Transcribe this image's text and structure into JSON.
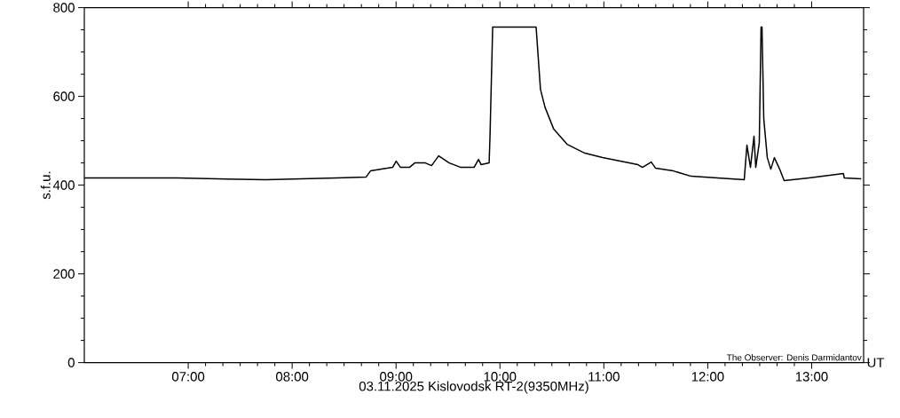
{
  "chart_data": {
    "type": "line",
    "xlabel": "03.11.2025 Kislovodsk RT-2(9350MHz)",
    "ylabel": "s.f.u.",
    "annotations": [
      "UT",
      "The Observer: Denis Darmidantov"
    ],
    "xlim": [
      6.0,
      13.5
    ],
    "ylim": [
      0,
      800
    ],
    "xticks": [
      {
        "value": 7,
        "label": "07:00"
      },
      {
        "value": 8,
        "label": "08:00"
      },
      {
        "value": 9,
        "label": "09:00"
      },
      {
        "value": 10,
        "label": "10:00"
      },
      {
        "value": 11,
        "label": "11:00"
      },
      {
        "value": 12,
        "label": "12:00"
      },
      {
        "value": 13,
        "label": "13:00"
      }
    ],
    "yticks": [
      0,
      200,
      400,
      600,
      800
    ],
    "grid": false,
    "marker": "none",
    "line_style": "solid",
    "series": [
      {
        "color": "#000000",
        "x": [
          6.0,
          6.895,
          7.748,
          8.43,
          8.711,
          8.754,
          8.967,
          9.001,
          9.043,
          9.129,
          9.18,
          9.282,
          9.342,
          9.41,
          9.512,
          9.623,
          9.751,
          9.794,
          9.819,
          9.896,
          9.905,
          9.93,
          10.348,
          10.39,
          10.433,
          10.518,
          10.646,
          10.817,
          10.987,
          11.328,
          11.371,
          11.456,
          11.499,
          11.669,
          11.84,
          12.351,
          12.377,
          12.411,
          12.445,
          12.462,
          12.496,
          12.513,
          12.522,
          12.539,
          12.573,
          12.607,
          12.641,
          12.692,
          12.735,
          12.974,
          13.306,
          13.314,
          13.476
        ],
        "values": [
          416,
          416,
          412,
          416,
          418,
          432,
          440,
          454,
          440,
          440,
          450,
          450,
          444,
          466,
          450,
          440,
          440,
          458,
          446,
          450,
          516,
          756,
          756,
          616,
          576,
          526,
          492,
          472,
          462,
          446,
          440,
          452,
          438,
          432,
          420,
          412,
          490,
          440,
          510,
          440,
          496,
          756,
          756,
          550,
          462,
          436,
          462,
          436,
          410,
          416,
          426,
          416,
          414
        ]
      }
    ]
  }
}
